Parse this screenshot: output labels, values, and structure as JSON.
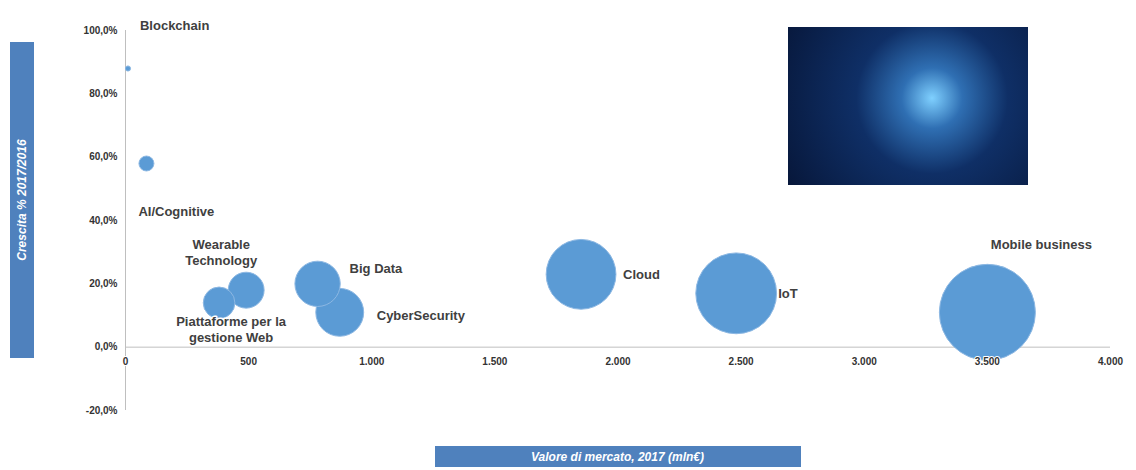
{
  "chart_data": {
    "type": "bubble",
    "x_label": "Valore di mercato, 2017 (mln€)",
    "y_label": "Crescita % 2017/2016",
    "categories": [
      "Blockchain",
      "AI/Cognitive",
      "Wearable Technology",
      "Piattaforme per la gestione Web",
      "Big Data",
      "CyberSecurity",
      "Cloud",
      "IoT",
      "Mobile business"
    ],
    "x": [
      10,
      85,
      490,
      380,
      780,
      870,
      1850,
      2480,
      3500
    ],
    "values": [
      88,
      58,
      18,
      14,
      20,
      11,
      23,
      17,
      11
    ],
    "sizes": [
      10,
      85,
      490,
      380,
      780,
      870,
      1850,
      2480,
      3500
    ],
    "color": "#5b9bd5",
    "xlim": [
      0,
      4000
    ],
    "xticks": [
      0,
      500,
      {
        "value": 1000,
        "label": "1.000"
      },
      {
        "value": 1500,
        "label": "1.500"
      },
      {
        "value": 2000,
        "label": "2.000"
      },
      {
        "value": 2500,
        "label": "2.500"
      },
      {
        "value": 3000,
        "label": "3.000"
      },
      {
        "value": 3500,
        "label": "3.500"
      },
      {
        "value": 4000,
        "label": "4.000"
      }
    ],
    "ylim": [
      -20,
      100
    ],
    "yticks": [
      {
        "value": -20,
        "label": "-20,0%"
      },
      {
        "value": 0,
        "label": "0,0%"
      },
      {
        "value": 20,
        "label": "20,0%"
      },
      {
        "value": 40,
        "label": "40,0%"
      },
      {
        "value": 60,
        "label": "60,0%"
      },
      {
        "value": 80,
        "label": "80,0%"
      },
      {
        "value": 100,
        "label": "100,0%"
      }
    ],
    "grid": false
  }
}
